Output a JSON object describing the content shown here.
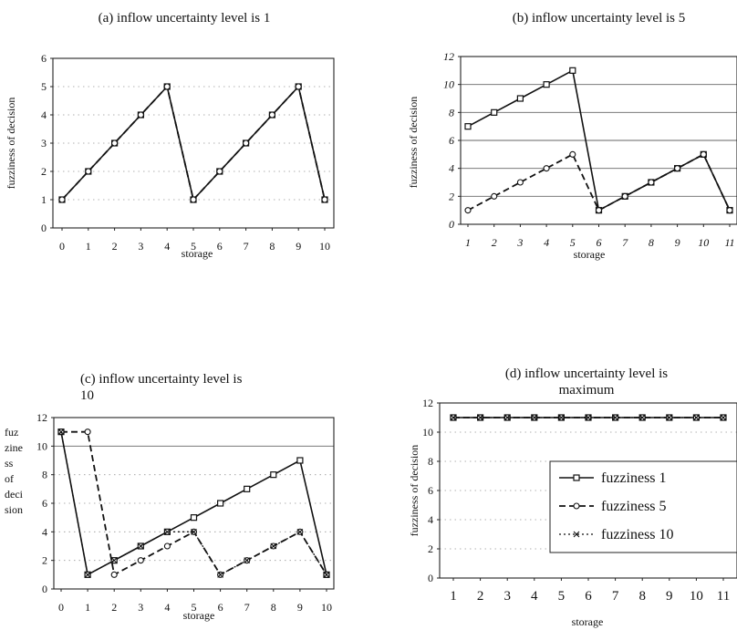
{
  "chart_data": [
    {
      "id": "a",
      "type": "line",
      "title": "(a) inflow uncertainty level is 1",
      "xlabel": "storage",
      "ylabel": "fuzziness of decision",
      "x": [
        0,
        1,
        2,
        3,
        4,
        5,
        6,
        7,
        8,
        9,
        10
      ],
      "ylim": [
        0,
        6
      ],
      "yticks": [
        0,
        1,
        2,
        3,
        4,
        5,
        6
      ],
      "grid": "horizontal dotted",
      "series": [
        {
          "values": [
            1,
            2,
            3,
            4,
            5,
            1,
            2,
            3,
            4,
            5,
            1
          ]
        },
        {
          "values": [
            1,
            2,
            3,
            4,
            5,
            1,
            2,
            3,
            4,
            5,
            1
          ]
        }
      ]
    },
    {
      "id": "b",
      "type": "line",
      "title": "(b) inflow uncertainty level is 5",
      "xlabel": "storage",
      "ylabel": "fuzziness of decision",
      "x": [
        1,
        2,
        3,
        4,
        5,
        6,
        7,
        8,
        9,
        10,
        11
      ],
      "ylim": [
        0,
        12
      ],
      "yticks": [
        0,
        2,
        4,
        6,
        8,
        10,
        12
      ],
      "grid": "horizontal solid",
      "series": [
        {
          "values": [
            7,
            8,
            9,
            10,
            11,
            1,
            2,
            3,
            4,
            5,
            1
          ]
        },
        {
          "values": [
            1,
            2,
            3,
            4,
            5,
            1,
            2,
            3,
            4,
            5,
            1
          ]
        }
      ]
    },
    {
      "id": "c",
      "type": "line",
      "title": "(c) inflow uncertainty level is 10",
      "xlabel": "storage",
      "ylabel": "fuz zine ss of deci sion",
      "x": [
        0,
        1,
        2,
        3,
        4,
        5,
        6,
        7,
        8,
        9,
        10
      ],
      "ylim": [
        0,
        12
      ],
      "yticks": [
        0,
        2,
        4,
        6,
        8,
        10,
        12
      ],
      "grid": "horizontal dotted, y=10 solid",
      "series": [
        {
          "values": [
            11,
            1,
            2,
            3,
            4,
            5,
            6,
            7,
            8,
            9,
            1
          ]
        },
        {
          "values": [
            11,
            11,
            1,
            2,
            3,
            4,
            1,
            2,
            3,
            4,
            1
          ]
        },
        {
          "values": [
            11,
            1,
            2,
            3,
            4,
            4,
            1,
            2,
            3,
            4,
            1
          ]
        }
      ]
    },
    {
      "id": "d",
      "type": "line",
      "title": "(d) inflow uncertainty level is maximum",
      "xlabel": "storage",
      "ylabel": "fuzziness of decision",
      "x": [
        1,
        2,
        3,
        4,
        5,
        6,
        7,
        8,
        9,
        10,
        11
      ],
      "ylim": [
        0,
        12
      ],
      "yticks": [
        0,
        2,
        4,
        6,
        8,
        10,
        12
      ],
      "grid": "horizontal dotted",
      "legend": [
        "fuzziness 1",
        "fuzziness 5",
        "fuzziness 10"
      ],
      "legend_position": "right",
      "series": [
        {
          "name": "fuzziness 1",
          "values": [
            11,
            11,
            11,
            11,
            11,
            11,
            11,
            11,
            11,
            11,
            11
          ]
        },
        {
          "name": "fuzziness 5",
          "values": [
            11,
            11,
            11,
            11,
            11,
            11,
            11,
            11,
            11,
            11,
            11
          ]
        },
        {
          "name": "fuzziness 10",
          "values": [
            11,
            11,
            11,
            11,
            11,
            11,
            11,
            11,
            11,
            11,
            11
          ]
        }
      ]
    }
  ]
}
